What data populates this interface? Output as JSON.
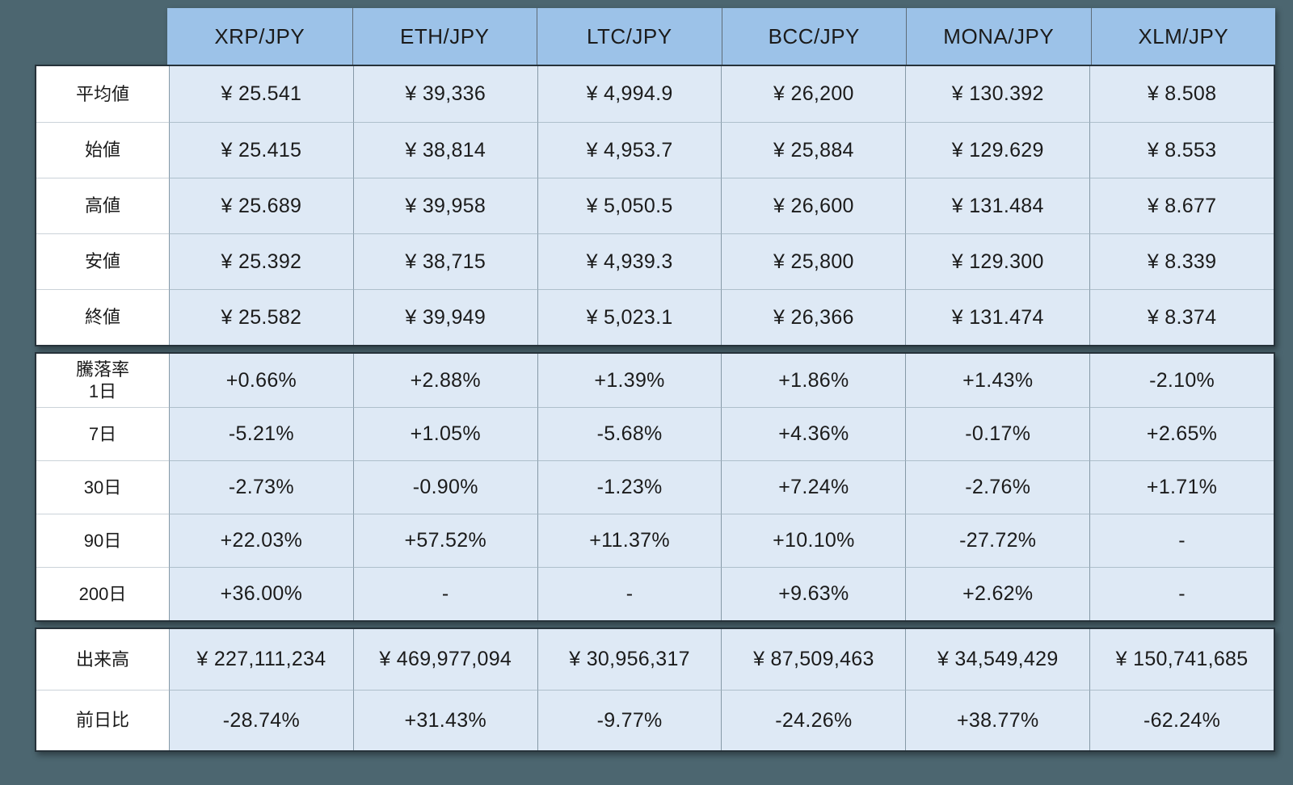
{
  "colors": {
    "background": "#4C6670",
    "header_fill": "#9CC2E8",
    "cell_fill": "#DEE9F5",
    "label_fill": "#FFFFFF",
    "block_border": "#26323A",
    "text": "#1B1B1B"
  },
  "chart_data": {
    "type": "table",
    "columns": [
      "XRP/JPY",
      "ETH/JPY",
      "LTC/JPY",
      "BCC/JPY",
      "MONA/JPY",
      "XLM/JPY"
    ],
    "blocks": [
      {
        "name": "prices",
        "rows": [
          {
            "label": "平均値",
            "values": [
              "¥ 25.541",
              "¥ 39,336",
              "¥ 4,994.9",
              "¥ 26,200",
              "¥ 130.392",
              "¥ 8.508"
            ]
          },
          {
            "label": "始値",
            "values": [
              "¥ 25.415",
              "¥ 38,814",
              "¥ 4,953.7",
              "¥ 25,884",
              "¥ 129.629",
              "¥ 8.553"
            ]
          },
          {
            "label": "高値",
            "values": [
              "¥ 25.689",
              "¥ 39,958",
              "¥ 5,050.5",
              "¥ 26,600",
              "¥ 131.484",
              "¥ 8.677"
            ]
          },
          {
            "label": "安値",
            "values": [
              "¥ 25.392",
              "¥ 38,715",
              "¥ 4,939.3",
              "¥ 25,800",
              "¥ 129.300",
              "¥ 8.339"
            ]
          },
          {
            "label": "終値",
            "values": [
              "¥ 25.582",
              "¥ 39,949",
              "¥ 5,023.1",
              "¥ 26,366",
              "¥ 131.474",
              "¥ 8.374"
            ]
          }
        ]
      },
      {
        "name": "rates",
        "rows": [
          {
            "label": "騰落率\n1日",
            "values": [
              "+0.66%",
              "+2.88%",
              "+1.39%",
              "+1.86%",
              "+1.43%",
              "-2.10%"
            ]
          },
          {
            "label": "7日",
            "values": [
              "-5.21%",
              "+1.05%",
              "-5.68%",
              "+4.36%",
              "-0.17%",
              "+2.65%"
            ]
          },
          {
            "label": "30日",
            "values": [
              "-2.73%",
              "-0.90%",
              "-1.23%",
              "+7.24%",
              "-2.76%",
              "+1.71%"
            ]
          },
          {
            "label": "90日",
            "values": [
              "+22.03%",
              "+57.52%",
              "+11.37%",
              "+10.10%",
              "-27.72%",
              "-"
            ]
          },
          {
            "label": "200日",
            "values": [
              "+36.00%",
              "-",
              "-",
              "+9.63%",
              "+2.62%",
              "-"
            ]
          }
        ]
      },
      {
        "name": "volume",
        "rows": [
          {
            "label": "出来高",
            "values": [
              "¥ 227,111,234",
              "¥ 469,977,094",
              "¥ 30,956,317",
              "¥ 87,509,463",
              "¥ 34,549,429",
              "¥ 150,741,685"
            ]
          },
          {
            "label": "前日比",
            "values": [
              "-28.74%",
              "+31.43%",
              "-9.77%",
              "-24.26%",
              "+38.77%",
              "-62.24%"
            ]
          }
        ]
      }
    ]
  }
}
